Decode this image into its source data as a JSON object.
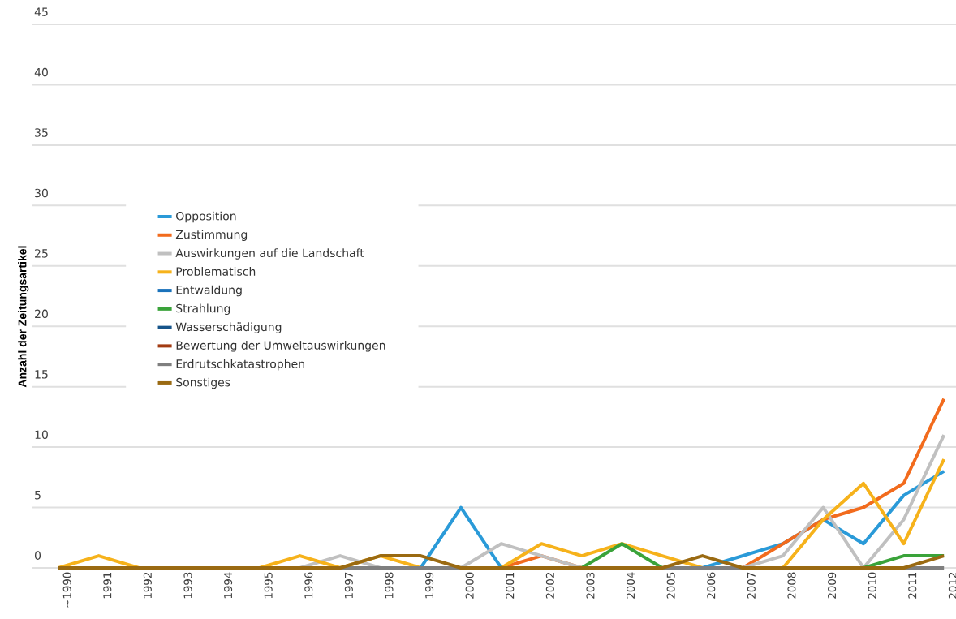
{
  "chart_data": {
    "type": "line",
    "ylabel": "Anzahl der Zeitungsartikel",
    "categories": [
      "~1990",
      "1991",
      "1992",
      "1993",
      "1994",
      "1995",
      "1996",
      "1997",
      "1998",
      "1999",
      "2000",
      "2001",
      "2002",
      "2003",
      "2004",
      "2005",
      "2006",
      "2007",
      "2008",
      "2009",
      "2010",
      "2011",
      "2012"
    ],
    "series": [
      {
        "name": "Opposition",
        "color": "#2a9ad8",
        "values": [
          null,
          null,
          null,
          null,
          null,
          null,
          null,
          null,
          null,
          0,
          5,
          0,
          null,
          null,
          null,
          null,
          0,
          1,
          2,
          4,
          2,
          6,
          8
        ]
      },
      {
        "name": "Zustimmung",
        "color": "#f26b1d",
        "values": [
          null,
          null,
          null,
          null,
          null,
          null,
          null,
          null,
          null,
          null,
          null,
          0,
          1,
          0,
          null,
          null,
          null,
          0,
          2,
          4,
          5,
          7,
          14
        ]
      },
      {
        "name": "Auswirkungen auf die Landschaft",
        "color": "#c0c0c0",
        "values": [
          null,
          null,
          null,
          null,
          null,
          null,
          0,
          1,
          0,
          null,
          0,
          2,
          1,
          0,
          null,
          null,
          null,
          0,
          1,
          5,
          0,
          4,
          11
        ]
      },
      {
        "name": "Problematisch",
        "color": "#f6b21b",
        "values": [
          0,
          1,
          0,
          null,
          null,
          0,
          1,
          0,
          1,
          0,
          null,
          0,
          2,
          1,
          2,
          1,
          0,
          null,
          0,
          4,
          7,
          2,
          9
        ]
      },
      {
        "name": "Entwaldung",
        "color": "#1a72bb",
        "values": [
          null,
          null,
          null,
          null,
          null,
          null,
          null,
          null,
          null,
          null,
          null,
          null,
          null,
          null,
          null,
          null,
          null,
          null,
          null,
          null,
          null,
          null,
          null
        ]
      },
      {
        "name": "Strahlung",
        "color": "#3aa33a",
        "values": [
          null,
          null,
          null,
          null,
          null,
          null,
          null,
          null,
          null,
          null,
          null,
          null,
          null,
          0,
          2,
          0,
          null,
          null,
          null,
          null,
          0,
          1,
          1
        ]
      },
      {
        "name": "Wasserschädigung",
        "color": "#16548a",
        "values": [
          null,
          null,
          null,
          null,
          null,
          null,
          null,
          null,
          null,
          null,
          null,
          null,
          null,
          null,
          null,
          null,
          null,
          null,
          null,
          null,
          null,
          null,
          null
        ]
      },
      {
        "name": "Bewertung der Umweltauswirkungen",
        "color": "#a23b12",
        "values": [
          null,
          null,
          null,
          null,
          null,
          null,
          null,
          null,
          null,
          null,
          null,
          null,
          null,
          null,
          null,
          null,
          null,
          null,
          null,
          null,
          null,
          null,
          null
        ]
      },
      {
        "name": "Erdrutschkatastrophen",
        "color": "#7f7f7f",
        "values": [
          null,
          null,
          null,
          null,
          null,
          null,
          null,
          0,
          0,
          0,
          0,
          null,
          null,
          null,
          null,
          0,
          0,
          0,
          null,
          null,
          null,
          0,
          0
        ]
      },
      {
        "name": "Sonstiges",
        "color": "#9a6a12",
        "values": [
          0,
          0,
          0,
          0,
          0,
          0,
          0,
          0,
          1,
          1,
          0,
          0,
          0,
          0,
          0,
          0,
          1,
          0,
          0,
          0,
          0,
          0,
          1
        ]
      }
    ],
    "ylim": [
      0,
      45
    ],
    "yticks": [
      0,
      5,
      10,
      15,
      20,
      25,
      30,
      35,
      40,
      45
    ],
    "grid": "y",
    "legend": "left",
    "marker": "none",
    "line_style": "solid"
  }
}
